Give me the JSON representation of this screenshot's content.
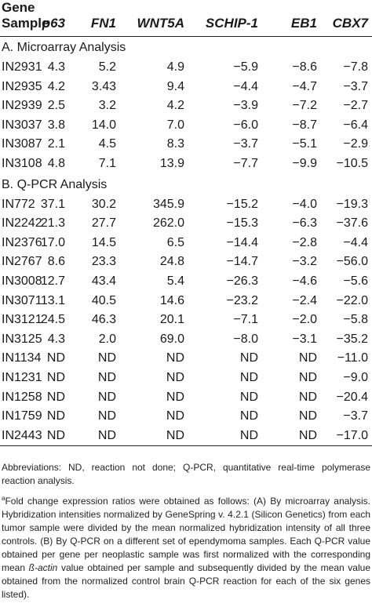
{
  "header": {
    "gene_label": "Gene",
    "sample_label": "Sample",
    "columns": [
      "p63",
      "FN1",
      "WNT5A",
      "SCHIP-1",
      "EB1",
      "CBX7"
    ]
  },
  "sections": [
    {
      "title": "A. Microarray Analysis",
      "rows": [
        {
          "sample": "IN2931",
          "values": [
            "4.3",
            "5.2",
            "4.9",
            "−5.9",
            "−8.6",
            "−7.8"
          ]
        },
        {
          "sample": "IN2935",
          "values": [
            "4.2",
            "3.43",
            "9.4",
            "−4.4",
            "−4.7",
            "−3.7"
          ]
        },
        {
          "sample": "IN2939",
          "values": [
            "2.5",
            "3.2",
            "4.2",
            "−3.9",
            "−7.2",
            "−2.7"
          ]
        },
        {
          "sample": "IN3037",
          "values": [
            "3.8",
            "14.0",
            "7.0",
            "−6.0",
            "−8.7",
            "−6.4"
          ]
        },
        {
          "sample": "IN3087",
          "values": [
            "2.1",
            "4.5",
            "8.3",
            "−3.7",
            "−5.1",
            "−2.9"
          ]
        },
        {
          "sample": "IN3108",
          "values": [
            "4.8",
            "7.1",
            "13.9",
            "−7.7",
            "−9.9",
            "−10.5"
          ]
        }
      ]
    },
    {
      "title": "B. Q-PCR Analysis",
      "rows": [
        {
          "sample": "IN772",
          "values": [
            "37.1",
            "30.2",
            "345.9",
            "−15.2",
            "−4.0",
            "−19.3"
          ]
        },
        {
          "sample": "IN2242",
          "values": [
            "21.3",
            "27.7",
            "262.0",
            "−15.3",
            "−6.3",
            "−37.6"
          ]
        },
        {
          "sample": "IN2376",
          "values": [
            "17.0",
            "14.5",
            "6.5",
            "−14.4",
            "−2.8",
            "−4.4"
          ]
        },
        {
          "sample": "IN2767",
          "values": [
            "8.6",
            "23.3",
            "24.8",
            "−14.7",
            "−3.2",
            "−56.0"
          ]
        },
        {
          "sample": "IN3008",
          "values": [
            "12.7",
            "43.4",
            "5.4",
            "−26.3",
            "−4.6",
            "−5.6"
          ]
        },
        {
          "sample": "IN3071",
          "values": [
            "13.1",
            "40.5",
            "14.6",
            "−23.2",
            "−2.4",
            "−22.0"
          ]
        },
        {
          "sample": "IN3121",
          "values": [
            "24.5",
            "46.3",
            "20.1",
            "−7.1",
            "−2.0",
            "−5.8"
          ]
        },
        {
          "sample": "IN3125",
          "values": [
            "4.3",
            "2.0",
            "69.0",
            "−8.0",
            "−3.1",
            "−35.2"
          ]
        },
        {
          "sample": "IN1134",
          "values": [
            "ND",
            "ND",
            "ND",
            "ND",
            "ND",
            "−11.0"
          ]
        },
        {
          "sample": "IN1231",
          "values": [
            "ND",
            "ND",
            "ND",
            "ND",
            "ND",
            "−9.0"
          ]
        },
        {
          "sample": "IN1258",
          "values": [
            "ND",
            "ND",
            "ND",
            "ND",
            "ND",
            "−20.4"
          ]
        },
        {
          "sample": "IN1759",
          "values": [
            "ND",
            "ND",
            "ND",
            "ND",
            "ND",
            "−3.7"
          ]
        },
        {
          "sample": "IN2443",
          "values": [
            "ND",
            "ND",
            "ND",
            "ND",
            "ND",
            "−17.0"
          ]
        }
      ]
    }
  ],
  "notes": {
    "abbreviations": "Abbreviations: ND, reaction not done; Q-PCR, quantitative real-time polymerase reaction analysis.",
    "footnote_marker": "a",
    "footnote_before_italic": "Fold change expression ratios were obtained as follows: (A) By microarray analysis. Hybridization intensities normalized by GeneSpring v. 4.2.1 (Silicon Genetics) from each tumor sample were divided by the mean normalized hybridization intensity of all three controls. (B) By Q-PCR on a different set of ependymoma samples. Each Q-PCR value obtained per gene per neoplastic sample was first normalized with the corresponding mean ",
    "footnote_italic": "ß-actin",
    "footnote_after_italic": " value obtained per sample and subsequently divided by the mean value obtained from the normalized control brain Q-PCR reaction for each of the six genes listed)."
  }
}
